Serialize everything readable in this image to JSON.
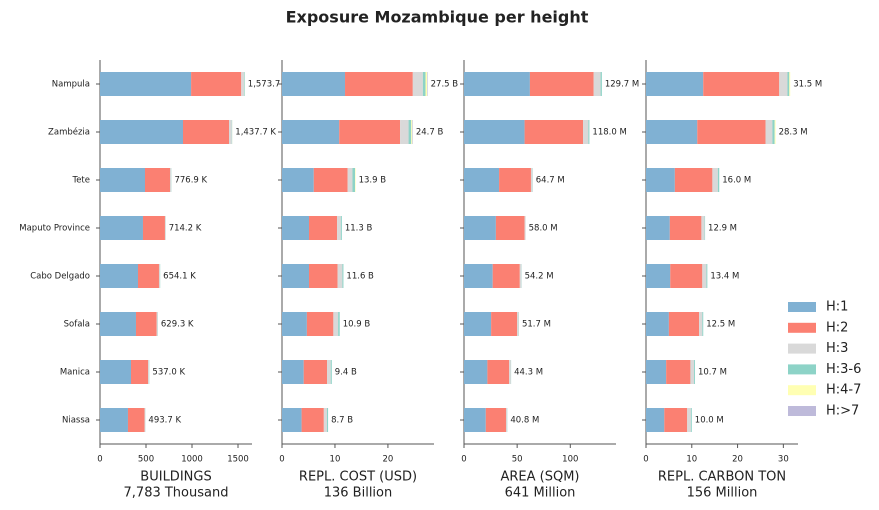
{
  "chart_data": {
    "type": "bar",
    "orientation": "horizontal",
    "title": "Exposure Mozambique per height",
    "categories": [
      "Nampula",
      "Zambézia",
      "Tete",
      "Maputo Province",
      "Cabo Delgado",
      "Sofala",
      "Manica",
      "Niassa"
    ],
    "legend": [
      {
        "name": "H:1",
        "color": "#80b1d3"
      },
      {
        "name": "H:2",
        "color": "#fb8072"
      },
      {
        "name": "H:3",
        "color": "#d9d9d9"
      },
      {
        "name": "H:3-6",
        "color": "#8dd3c7"
      },
      {
        "name": "H:4-7",
        "color": "#ffffb3"
      },
      {
        "name": "H:>7",
        "color": "#bebada"
      }
    ],
    "panels": [
      {
        "xlabel": "BUILDINGS",
        "xlabel_sub": "7,783 Thousand",
        "xlim": [
          0,
          1652
        ],
        "xticks": [
          0,
          500,
          1000,
          1500
        ],
        "series": [
          {
            "values": [
              990,
              902,
              489,
              467,
              413,
              391,
              337,
              304
            ]
          },
          {
            "values": [
              545,
              500,
              272,
              239,
              228,
              225,
              185,
              180
            ]
          },
          {
            "values": [
              30,
              30,
              14,
              7,
              11,
              11,
              13,
              8
            ]
          },
          {
            "values": [
              6,
              4,
              1.9,
              1.2,
              2.1,
              2.3,
              2,
              1.7
            ]
          },
          {
            "values": [
              1.7,
              1.2,
              0,
              0,
              0,
              0,
              0,
              0
            ]
          },
          {
            "values": [
              1,
              0.5,
              0,
              0,
              0,
              0,
              0,
              0
            ]
          }
        ],
        "total_labels": [
          "1,573.7 K",
          "1,437.7 K",
          "776.9 K",
          "714.2 K",
          "654.1 K",
          "629.3 K",
          "537.0 K",
          "493.7 K"
        ]
      },
      {
        "xlabel": "REPL. COST (USD)",
        "xlabel_sub": "136 Billion",
        "xlim": [
          0,
          28.7
        ],
        "xticks": [
          0,
          10,
          20
        ],
        "series": [
          {
            "values": [
              11.9,
              10.8,
              6.0,
              5.1,
              5.1,
              4.7,
              4.1,
              3.7
            ]
          },
          {
            "values": [
              12.8,
              11.5,
              6.4,
              5.3,
              5.4,
              5.0,
              4.4,
              4.2
            ]
          },
          {
            "values": [
              1.9,
              1.6,
              0.9,
              0.7,
              0.9,
              0.9,
              0.7,
              0.6
            ]
          },
          {
            "values": [
              0.5,
              0.5,
              0.5,
              0.2,
              0.2,
              0.3,
              0.2,
              0.2
            ]
          },
          {
            "values": [
              0.3,
              0.2,
              0.1,
              0,
              0,
              0,
              0,
              0
            ]
          },
          {
            "values": [
              0.1,
              0.1,
              0,
              0,
              0,
              0,
              0,
              0
            ]
          }
        ],
        "total_labels": [
          "27.5 B",
          "24.7 B",
          "13.9 B",
          "11.3 B",
          "11.6 B",
          "10.9 B",
          "9.4 B",
          "8.7 B"
        ]
      },
      {
        "xlabel": "AREA (SQM)",
        "xlabel_sub": "641 Million",
        "xlim": [
          0,
          143
        ],
        "xticks": [
          0,
          50,
          100
        ],
        "series": [
          {
            "values": [
              62,
              57,
              33,
              30,
              27,
              25.5,
              22,
              20.5
            ]
          },
          {
            "values": [
              60,
              55,
              30,
              27,
              25.5,
              24.5,
              20.5,
              19
            ]
          },
          {
            "values": [
              6.5,
              5,
              1.5,
              1,
              1.5,
              1.5,
              1.6,
              1.1
            ]
          },
          {
            "values": [
              1.2,
              1,
              0.2,
              0,
              0.2,
              0.2,
              0.2,
              0.2
            ]
          },
          {
            "values": [
              0,
              0,
              0,
              0,
              0,
              0,
              0,
              0
            ]
          },
          {
            "values": [
              0,
              0,
              0,
              0,
              0,
              0,
              0,
              0
            ]
          }
        ],
        "total_labels": [
          "129.7 M",
          "118.0 M",
          "64.7 M",
          "58.0 M",
          "54.2 M",
          "51.7 M",
          "44.3 M",
          "40.8 M"
        ]
      },
      {
        "xlabel": "REPL. CARBON TON",
        "xlabel_sub": "156 Million",
        "xlim": [
          0,
          33.2
        ],
        "xticks": [
          0,
          10,
          20,
          30
        ],
        "series": [
          {
            "values": [
              12.5,
              11.2,
              6.3,
              5.2,
              5.3,
              5.0,
              4.4,
              4.0
            ]
          },
          {
            "values": [
              16.6,
              14.9,
              8.2,
              6.9,
              7.0,
              6.6,
              5.3,
              5.0
            ]
          },
          {
            "values": [
              1.8,
              1.5,
              1.2,
              0.7,
              0.9,
              0.7,
              0.8,
              0.8
            ]
          },
          {
            "values": [
              0.4,
              0.5,
              0.3,
              0.1,
              0.2,
              0.2,
              0.2,
              0.2
            ]
          },
          {
            "values": [
              0.2,
              0.2,
              0,
              0,
              0,
              0,
              0,
              0
            ]
          },
          {
            "values": [
              0,
              0,
              0,
              0,
              0,
              0,
              0,
              0
            ]
          }
        ],
        "total_labels": [
          "31.5 M",
          "28.3 M",
          "16.0 M",
          "12.9 M",
          "13.4 M",
          "12.5 M",
          "10.7 M",
          "10.0 M"
        ]
      }
    ]
  }
}
